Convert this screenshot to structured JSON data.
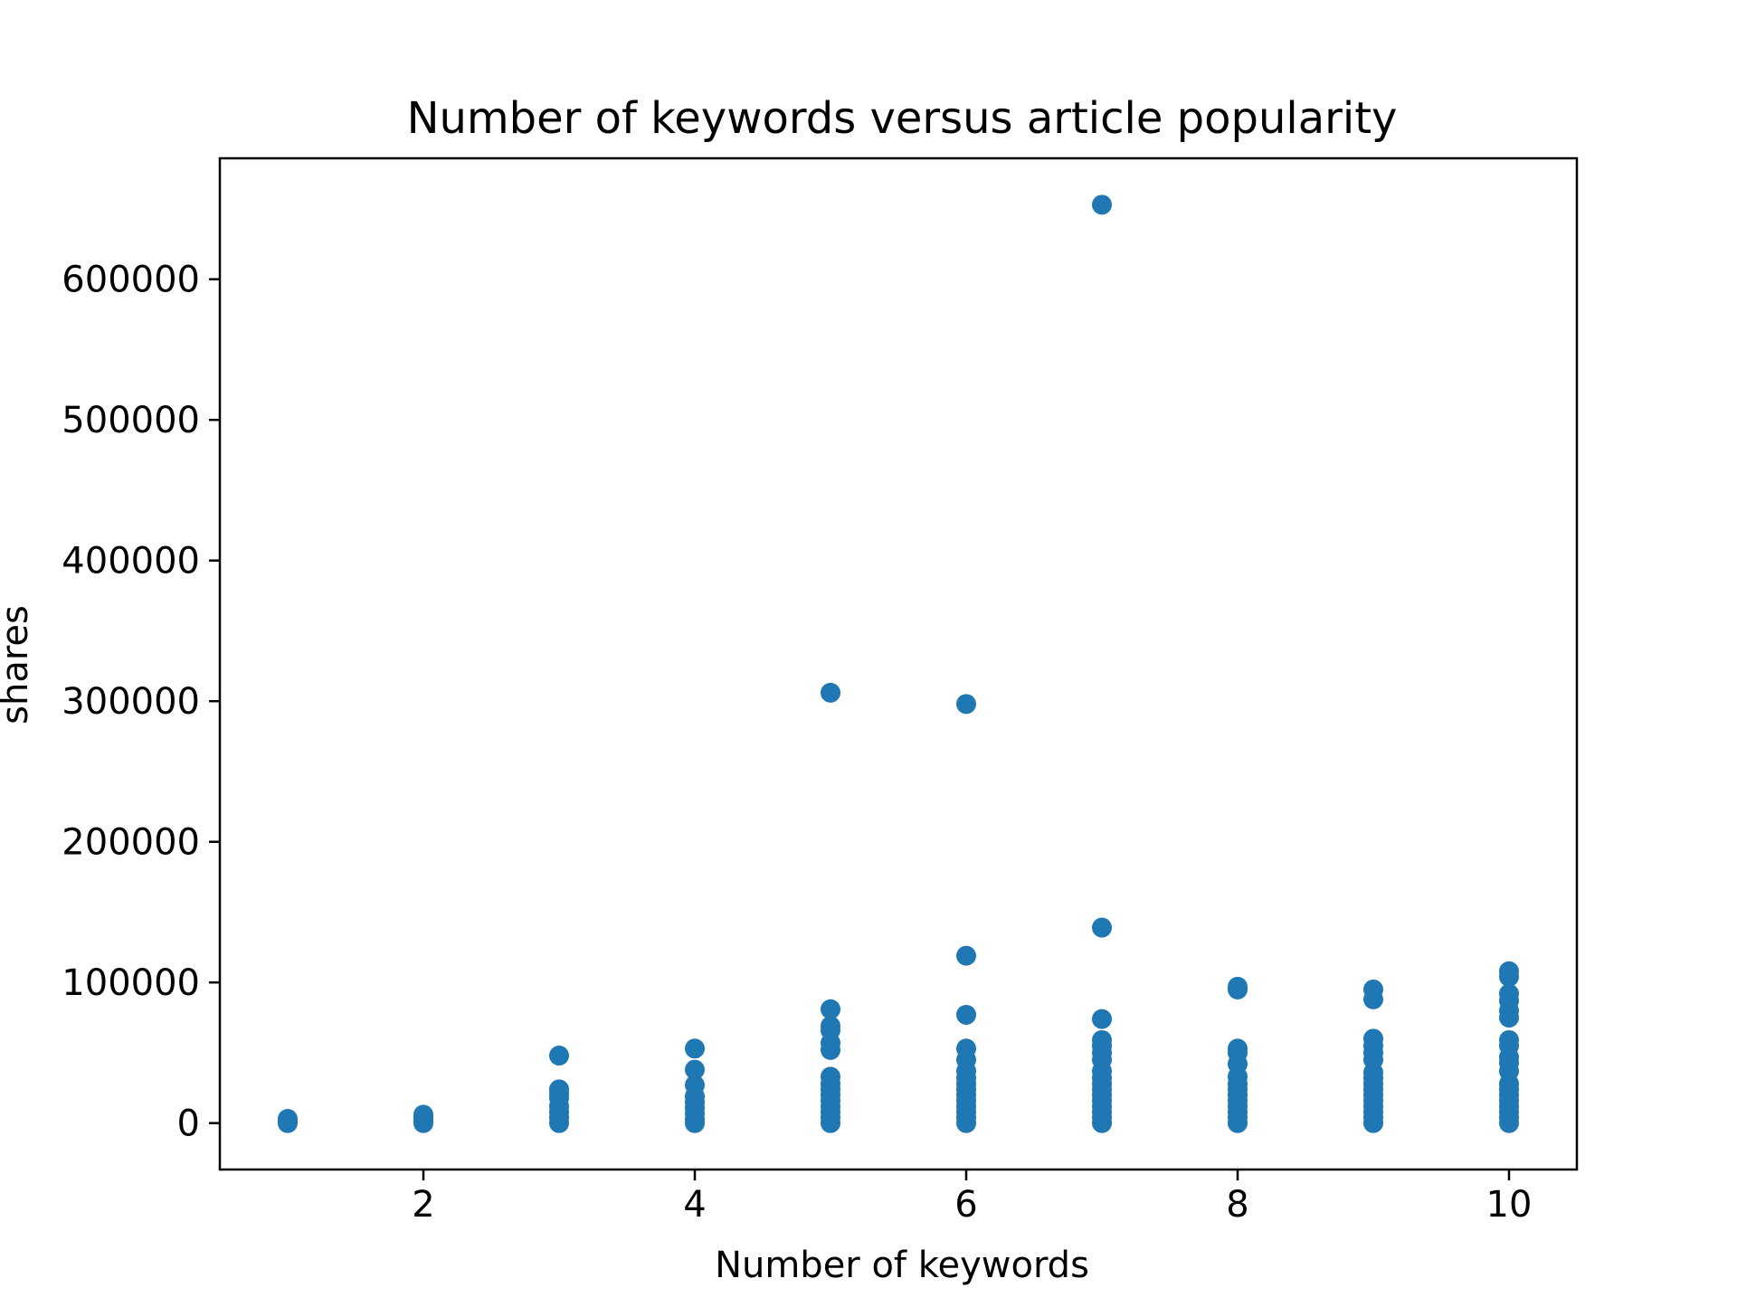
{
  "chart_data": {
    "type": "scatter",
    "title": "Number of keywords versus article popularity",
    "xlabel": "Number of keywords",
    "ylabel": "shares",
    "xlim": [
      0.5,
      10.5
    ],
    "ylim": [
      -33000,
      686000
    ],
    "xticks": [
      2,
      4,
      6,
      8,
      10
    ],
    "yticks": [
      0,
      100000,
      200000,
      300000,
      400000,
      500000,
      600000
    ],
    "ytick_labels": [
      "0",
      "100000",
      "200000",
      "300000",
      "400000",
      "500000",
      "600000"
    ],
    "xtick_labels": [
      "2",
      "4",
      "6",
      "8",
      "10"
    ],
    "grid": false,
    "marker_color": "#1f77b4",
    "points": [
      {
        "x": 1,
        "y": 0
      },
      {
        "x": 1,
        "y": 1500
      },
      {
        "x": 1,
        "y": 3000
      },
      {
        "x": 2,
        "y": 0
      },
      {
        "x": 2,
        "y": 2000
      },
      {
        "x": 2,
        "y": 4000
      },
      {
        "x": 2,
        "y": 6000
      },
      {
        "x": 3,
        "y": 0
      },
      {
        "x": 3,
        "y": 4000
      },
      {
        "x": 3,
        "y": 8000
      },
      {
        "x": 3,
        "y": 12000
      },
      {
        "x": 3,
        "y": 18000
      },
      {
        "x": 3,
        "y": 21000
      },
      {
        "x": 3,
        "y": 24000
      },
      {
        "x": 3,
        "y": 48000
      },
      {
        "x": 4,
        "y": 0
      },
      {
        "x": 4,
        "y": 3000
      },
      {
        "x": 4,
        "y": 7000
      },
      {
        "x": 4,
        "y": 11000
      },
      {
        "x": 4,
        "y": 15000
      },
      {
        "x": 4,
        "y": 19000
      },
      {
        "x": 4,
        "y": 27000
      },
      {
        "x": 4,
        "y": 38000
      },
      {
        "x": 4,
        "y": 53000
      },
      {
        "x": 5,
        "y": 0
      },
      {
        "x": 5,
        "y": 4000
      },
      {
        "x": 5,
        "y": 8000
      },
      {
        "x": 5,
        "y": 12000
      },
      {
        "x": 5,
        "y": 16000
      },
      {
        "x": 5,
        "y": 20000
      },
      {
        "x": 5,
        "y": 24000
      },
      {
        "x": 5,
        "y": 28000
      },
      {
        "x": 5,
        "y": 33000
      },
      {
        "x": 5,
        "y": 52000
      },
      {
        "x": 5,
        "y": 57000
      },
      {
        "x": 5,
        "y": 66000
      },
      {
        "x": 5,
        "y": 69000
      },
      {
        "x": 5,
        "y": 81000
      },
      {
        "x": 5,
        "y": 306000
      },
      {
        "x": 6,
        "y": 0
      },
      {
        "x": 6,
        "y": 4000
      },
      {
        "x": 6,
        "y": 8000
      },
      {
        "x": 6,
        "y": 12000
      },
      {
        "x": 6,
        "y": 16000
      },
      {
        "x": 6,
        "y": 20000
      },
      {
        "x": 6,
        "y": 24000
      },
      {
        "x": 6,
        "y": 28000
      },
      {
        "x": 6,
        "y": 32000
      },
      {
        "x": 6,
        "y": 37000
      },
      {
        "x": 6,
        "y": 45000
      },
      {
        "x": 6,
        "y": 53000
      },
      {
        "x": 6,
        "y": 77000
      },
      {
        "x": 6,
        "y": 119000
      },
      {
        "x": 6,
        "y": 298000
      },
      {
        "x": 7,
        "y": 0
      },
      {
        "x": 7,
        "y": 4000
      },
      {
        "x": 7,
        "y": 8000
      },
      {
        "x": 7,
        "y": 12000
      },
      {
        "x": 7,
        "y": 16000
      },
      {
        "x": 7,
        "y": 20000
      },
      {
        "x": 7,
        "y": 24000
      },
      {
        "x": 7,
        "y": 28000
      },
      {
        "x": 7,
        "y": 32000
      },
      {
        "x": 7,
        "y": 37000
      },
      {
        "x": 7,
        "y": 45000
      },
      {
        "x": 7,
        "y": 50000
      },
      {
        "x": 7,
        "y": 55000
      },
      {
        "x": 7,
        "y": 59000
      },
      {
        "x": 7,
        "y": 74000
      },
      {
        "x": 7,
        "y": 139000
      },
      {
        "x": 7,
        "y": 653000
      },
      {
        "x": 8,
        "y": 0
      },
      {
        "x": 8,
        "y": 4000
      },
      {
        "x": 8,
        "y": 8000
      },
      {
        "x": 8,
        "y": 12000
      },
      {
        "x": 8,
        "y": 16000
      },
      {
        "x": 8,
        "y": 20000
      },
      {
        "x": 8,
        "y": 24000
      },
      {
        "x": 8,
        "y": 28000
      },
      {
        "x": 8,
        "y": 33000
      },
      {
        "x": 8,
        "y": 42000
      },
      {
        "x": 8,
        "y": 50000
      },
      {
        "x": 8,
        "y": 53000
      },
      {
        "x": 8,
        "y": 95000
      },
      {
        "x": 8,
        "y": 97000
      },
      {
        "x": 9,
        "y": 0
      },
      {
        "x": 9,
        "y": 4000
      },
      {
        "x": 9,
        "y": 8000
      },
      {
        "x": 9,
        "y": 12000
      },
      {
        "x": 9,
        "y": 16000
      },
      {
        "x": 9,
        "y": 20000
      },
      {
        "x": 9,
        "y": 24000
      },
      {
        "x": 9,
        "y": 28000
      },
      {
        "x": 9,
        "y": 32000
      },
      {
        "x": 9,
        "y": 36000
      },
      {
        "x": 9,
        "y": 45000
      },
      {
        "x": 9,
        "y": 50000
      },
      {
        "x": 9,
        "y": 55000
      },
      {
        "x": 9,
        "y": 60000
      },
      {
        "x": 9,
        "y": 88000
      },
      {
        "x": 9,
        "y": 95000
      },
      {
        "x": 10,
        "y": 0
      },
      {
        "x": 10,
        "y": 4000
      },
      {
        "x": 10,
        "y": 8000
      },
      {
        "x": 10,
        "y": 12000
      },
      {
        "x": 10,
        "y": 16000
      },
      {
        "x": 10,
        "y": 20000
      },
      {
        "x": 10,
        "y": 24000
      },
      {
        "x": 10,
        "y": 28000
      },
      {
        "x": 10,
        "y": 37000
      },
      {
        "x": 10,
        "y": 43000
      },
      {
        "x": 10,
        "y": 47000
      },
      {
        "x": 10,
        "y": 55000
      },
      {
        "x": 10,
        "y": 59000
      },
      {
        "x": 10,
        "y": 75000
      },
      {
        "x": 10,
        "y": 80000
      },
      {
        "x": 10,
        "y": 87000
      },
      {
        "x": 10,
        "y": 92000
      },
      {
        "x": 10,
        "y": 104000
      },
      {
        "x": 10,
        "y": 108000
      }
    ]
  }
}
